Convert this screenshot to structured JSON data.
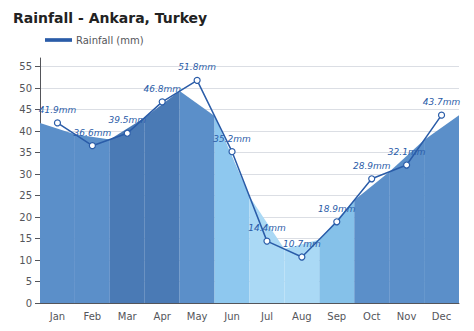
{
  "chart_data": {
    "type": "area",
    "title": "Rainfall - Ankara, Turkey",
    "categories": [
      "Jan",
      "Feb",
      "Mar",
      "Apr",
      "May",
      "Jun",
      "Jul",
      "Aug",
      "Sep",
      "Oct",
      "Nov",
      "Dec"
    ],
    "series": [
      {
        "name": "Rainfall (mm)",
        "color": "#2a5ca8",
        "marker": "circle",
        "colors": [
          "#5b8fc9",
          "#5b8fc9",
          "#4a7ab5",
          "#4a7ab5",
          "#5b8fc9",
          "#8ec8ef",
          "#aad9f5",
          "#aad9f5",
          "#85c1e9",
          "#5b8fc9",
          "#5b8fc9",
          "#5b8fc9"
        ],
        "values": [
          41.9,
          36.6,
          39.5,
          46.8,
          51.8,
          35.2,
          14.4,
          10.7,
          18.9,
          28.9,
          32.1,
          43.7
        ],
        "value_labels": [
          "41.9mm",
          "36.6mm",
          "39.5mm",
          "46.8mm",
          "51.8mm",
          "35.2mm",
          "14.4mm",
          "10.7mm",
          "18.9mm",
          "28.9mm",
          "32.1mm",
          "43.7mm"
        ]
      }
    ],
    "ylim": [
      0,
      57
    ],
    "yticks": [
      0,
      5,
      10,
      15,
      20,
      25,
      30,
      35,
      40,
      45,
      50,
      55
    ],
    "grid": true,
    "legend": "upper left",
    "data_labels": true
  }
}
